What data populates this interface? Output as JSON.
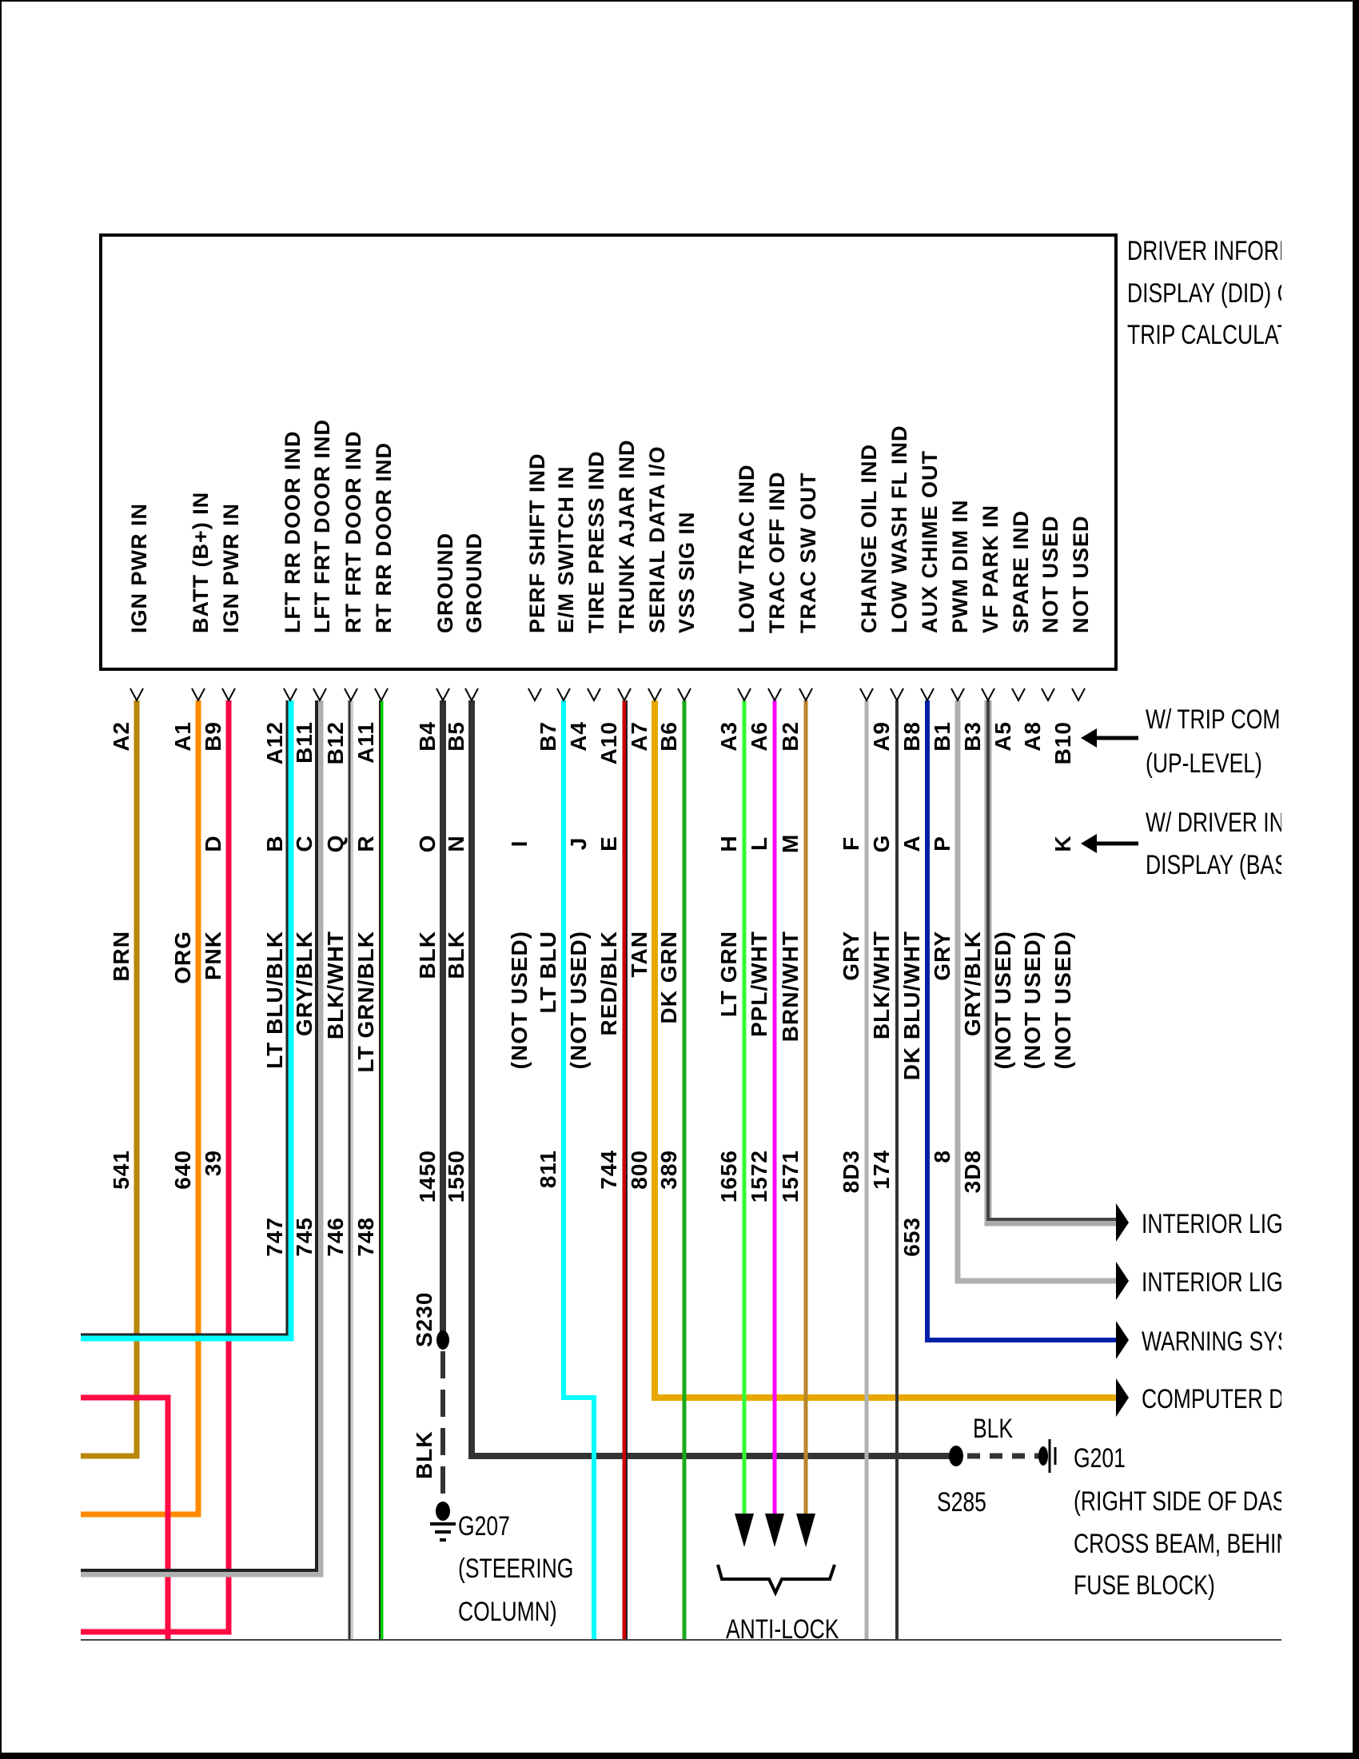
{
  "component_title": [
    "DRIVER INFORMA",
    "DISPLAY (DID) OR",
    "TRIP CALCULATO"
  ],
  "variants": {
    "trip_computer": [
      "W/ TRIP COMPU",
      "(UP-LEVEL)"
    ],
    "driver_info": [
      "W/ DRIVER INFO",
      "DISPLAY (BASE"
    ]
  },
  "columns": [
    {
      "function": "IGN PWR IN",
      "pin_a": "A2",
      "pin_b": "",
      "color": "BRN",
      "circuit": "541",
      "hex": "#b8860b"
    },
    {
      "function": "BATT (B+) IN",
      "pin_a": "A1",
      "pin_b": "",
      "color": "ORG",
      "circuit": "640",
      "hex": "#ff8a00"
    },
    {
      "function": "IGN PWR IN",
      "pin_a": "B9",
      "pin_b": "D",
      "color": "PNK",
      "circuit": "39",
      "hex": "#ff0a44"
    },
    {
      "function": "LFT RR DOOR IND",
      "pin_a": "A12",
      "pin_b": "B",
      "color": "LT BLU/BLK",
      "circuit": "747",
      "hex": "#00ffff"
    },
    {
      "function": "LFT FRT DOOR IND",
      "pin_a": "B11",
      "pin_b": "C",
      "color": "GRY/BLK",
      "circuit": "745",
      "hex": "#b0b0b0"
    },
    {
      "function": "RT FRT DOOR IND",
      "pin_a": "B12",
      "pin_b": "Q",
      "color": "BLK/WHT",
      "circuit": "746",
      "hex": "#333333"
    },
    {
      "function": "RT RR DOOR IND",
      "pin_a": "A11",
      "pin_b": "R",
      "color": "LT GRN/BLK",
      "circuit": "748",
      "hex": "#00cc00"
    },
    {
      "function": "GROUND",
      "pin_a": "B4",
      "pin_b": "O",
      "color": "BLK",
      "circuit": "1450",
      "hex": "#333333"
    },
    {
      "function": "GROUND",
      "pin_a": "B5",
      "pin_b": "N",
      "color": "BLK",
      "circuit": "1550",
      "hex": "#333333"
    },
    {
      "function": "PERF SHIFT IND",
      "pin_a": "",
      "pin_b": "I",
      "color": "(NOT USED)",
      "circuit": "",
      "hex": ""
    },
    {
      "function": "E/M SWITCH IN",
      "pin_a": "B7",
      "pin_b": "",
      "color": "LT BLU",
      "circuit": "811",
      "hex": "#00ffff"
    },
    {
      "function": "TIRE PRESS IND",
      "pin_a": "A4",
      "pin_b": "J",
      "color": "(NOT USED)",
      "circuit": "",
      "hex": ""
    },
    {
      "function": "TRUNK AJAR IND",
      "pin_a": "A10",
      "pin_b": "E",
      "color": "RED/BLK",
      "circuit": "744",
      "hex": "#cc0000"
    },
    {
      "function": "SERIAL DATA I/O",
      "pin_a": "A7",
      "pin_b": "",
      "color": "TAN",
      "circuit": "800",
      "hex": "#e6a800"
    },
    {
      "function": "VSS SIG IN",
      "pin_a": "B6",
      "pin_b": "",
      "color": "DK GRN",
      "circuit": "389",
      "hex": "#1aaa1a"
    },
    {
      "function": "LOW TRAC IND",
      "pin_a": "A3",
      "pin_b": "H",
      "color": "LT GRN",
      "circuit": "1656",
      "hex": "#33ff33"
    },
    {
      "function": "TRAC OFF IND",
      "pin_a": "A6",
      "pin_b": "L",
      "color": "PPL/WHT",
      "circuit": "1572",
      "hex": "#ff00ff"
    },
    {
      "function": "TRAC SW OUT",
      "pin_a": "B2",
      "pin_b": "M",
      "color": "BRN/WHT",
      "circuit": "1571",
      "hex": "#b8862b"
    },
    {
      "function": "CHANGE OIL IND",
      "pin_a": "",
      "pin_b": "F",
      "color": "GRY",
      "circuit": "8D3",
      "hex": "#b0b0b0"
    },
    {
      "function": "LOW WASH FL IND",
      "pin_a": "A9",
      "pin_b": "G",
      "color": "BLK/WHT",
      "circuit": "174",
      "hex": "#333333"
    },
    {
      "function": "AUX CHIME OUT",
      "pin_a": "B8",
      "pin_b": "A",
      "color": "DK BLU/WHT",
      "circuit": "653",
      "hex": "#0022aa"
    },
    {
      "function": "PWM DIM IN",
      "pin_a": "B1",
      "pin_b": "P",
      "color": "GRY",
      "circuit": "8",
      "hex": "#b0b0b0"
    },
    {
      "function": "VF PARK IN",
      "pin_a": "B3",
      "pin_b": "",
      "color": "GRY/BLK",
      "circuit": "3D8",
      "hex": "#999999"
    },
    {
      "function": "SPARE IND",
      "pin_a": "A5",
      "pin_b": "",
      "color": "(NOT USED)",
      "circuit": "",
      "hex": ""
    },
    {
      "function": "NOT USED",
      "pin_a": "A8",
      "pin_b": "",
      "color": "(NOT USED)",
      "circuit": "",
      "hex": ""
    },
    {
      "function": "NOT USED",
      "pin_a": "B10",
      "pin_b": "K",
      "color": "(NOT USED)",
      "circuit": "",
      "hex": ""
    }
  ],
  "outputs": [
    "INTERIOR LIGHT",
    "INTERIOR LIGHT",
    "WARNING SYST",
    "COMPUTER DAT"
  ],
  "splices": {
    "s230": "S230",
    "s285": "S285",
    "blk_left": "BLK",
    "blk_right": "BLK"
  },
  "grounds": {
    "g207": [
      "G207",
      "(STEERING",
      "COLUMN)"
    ],
    "g201": [
      "G201",
      "(RIGHT SIDE OF DASH",
      "CROSS BEAM, BEHIND",
      "FUSE BLOCK)"
    ]
  },
  "anti_lock": "ANTI-LOCK"
}
